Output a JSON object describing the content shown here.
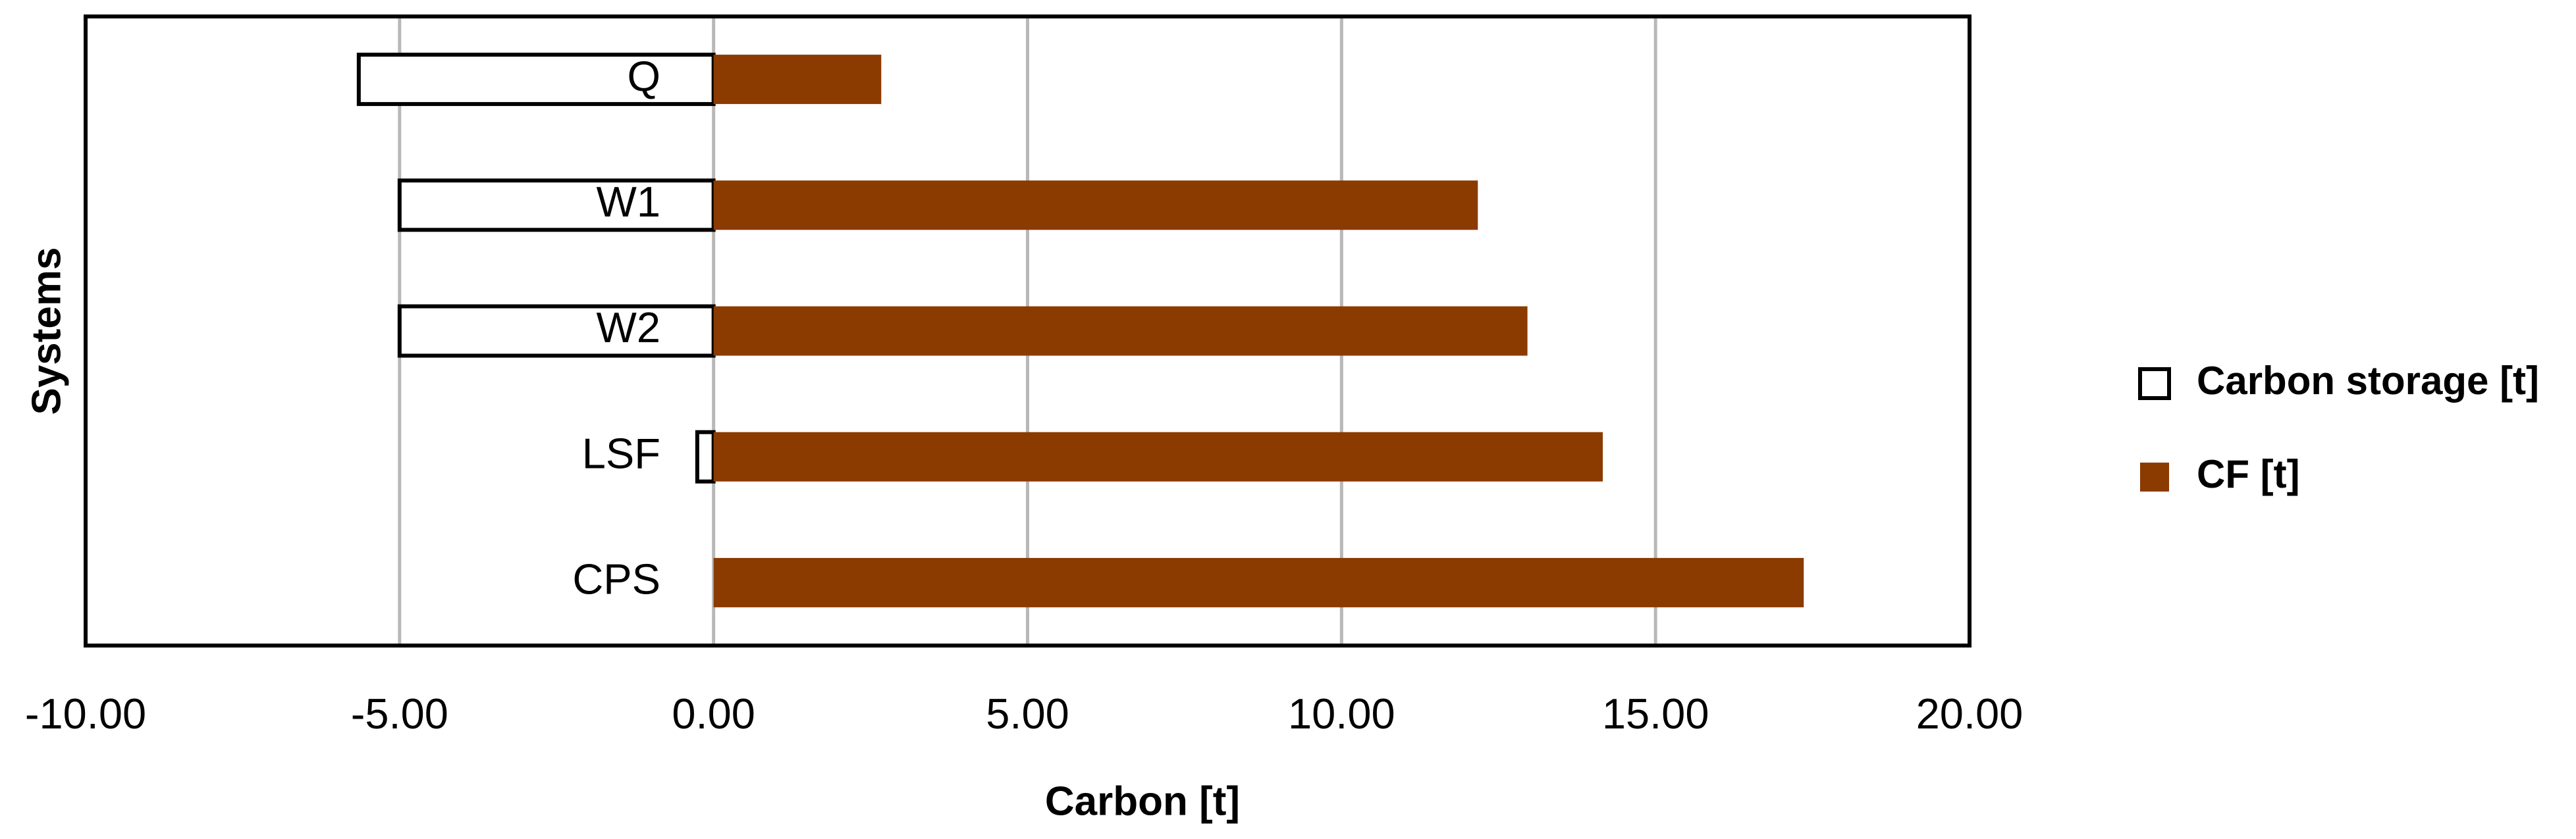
{
  "chart_data": {
    "type": "hbar",
    "categories": [
      "Q",
      "W1",
      "W2",
      "LSF",
      "CPS"
    ],
    "series": [
      {
        "name": "Carbon storage [t]",
        "color": "#ffffff",
        "values": [
          -5.65,
          -5.0,
          -5.0,
          -0.26,
          0
        ]
      },
      {
        "name": "CF [t]",
        "color": "#8b3a00",
        "values": [
          2.67,
          12.17,
          12.96,
          14.16,
          17.36
        ]
      }
    ],
    "xlabel": "Carbon [t]",
    "ylabel": "Systems",
    "xlim": [
      -10,
      20
    ],
    "xticks": [
      {
        "value": -10,
        "label": "-10.00"
      },
      {
        "value": -5,
        "label": "-5.00"
      },
      {
        "value": 0,
        "label": "0.00"
      },
      {
        "value": 5,
        "label": "5.00"
      },
      {
        "value": 10,
        "label": "10.00"
      },
      {
        "value": 15,
        "label": "15.00"
      },
      {
        "value": 20,
        "label": "20.00"
      }
    ],
    "grid": true,
    "legend": "right"
  }
}
